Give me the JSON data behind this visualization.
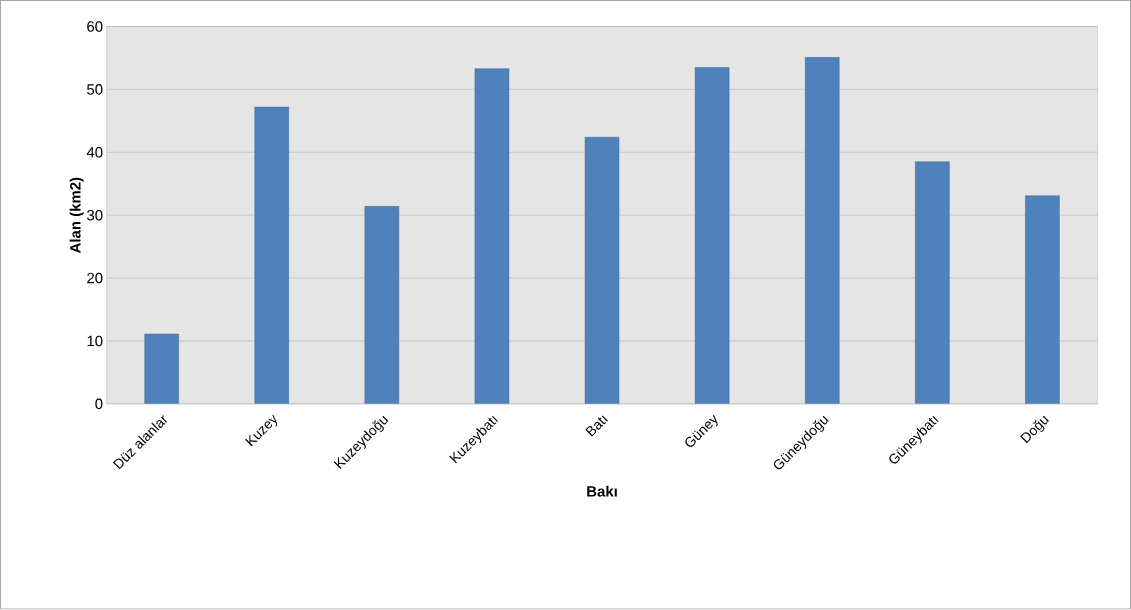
{
  "chart_data": {
    "type": "bar",
    "xlabel": "Bakı",
    "ylabel": "Alan (km2)",
    "categories": [
      "Düz alanlar",
      "Kuzey",
      "Kuzeydoğu",
      "Kuzeybatı",
      "Batı",
      "Güney",
      "Güneydoğu",
      "Güneybatı",
      "Doğu"
    ],
    "values": [
      11.1,
      47.2,
      31.4,
      53.3,
      42.4,
      53.5,
      55.1,
      38.5,
      33.1
    ],
    "color": "#4f81bd",
    "ylim": [
      0,
      60
    ],
    "yticks": [
      0,
      10,
      20,
      30,
      40,
      50,
      60
    ],
    "grid": "y"
  }
}
